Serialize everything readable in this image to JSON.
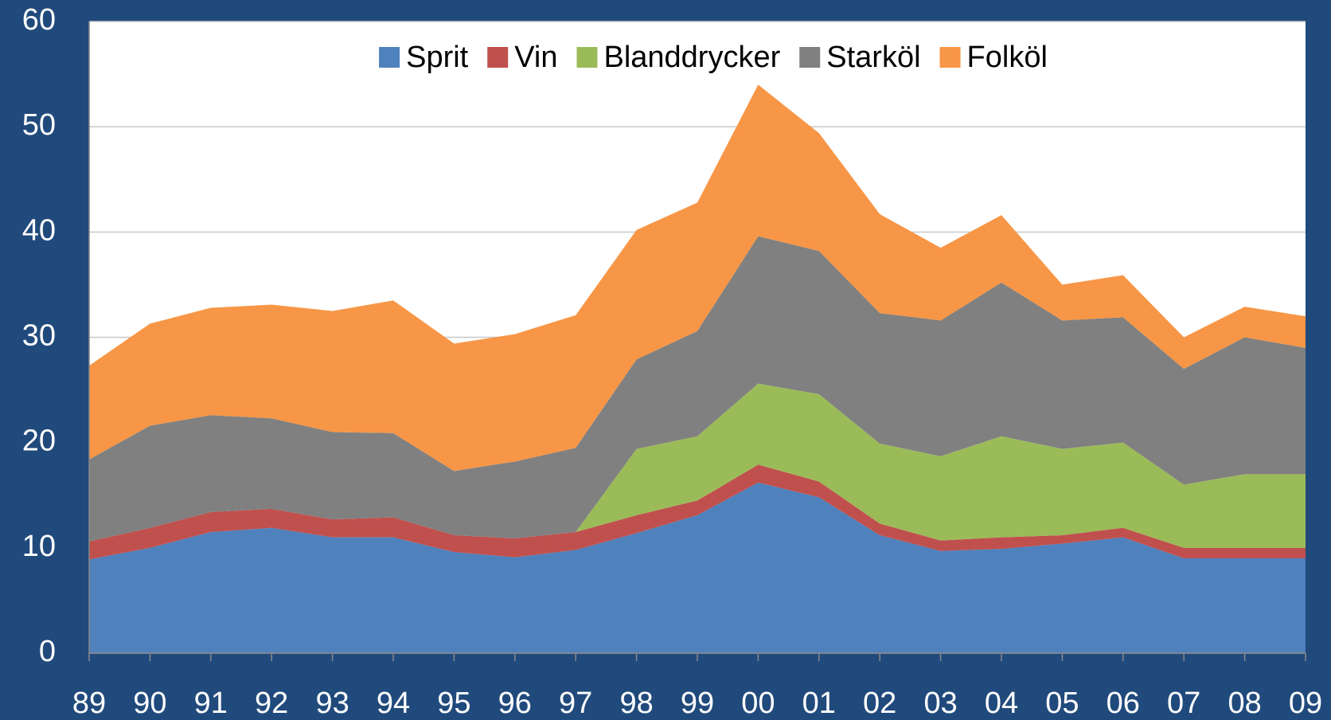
{
  "chart_data": {
    "type": "stacked_area",
    "categories": [
      "89",
      "90",
      "91",
      "92",
      "93",
      "94",
      "95",
      "96",
      "97",
      "98",
      "99",
      "00",
      "01",
      "02",
      "03",
      "04",
      "05",
      "06",
      "07",
      "08",
      "09"
    ],
    "series": [
      {
        "name": "Sprit",
        "color": "#4f81bd",
        "values": [
          8.9,
          10.0,
          11.5,
          11.9,
          11.0,
          11.0,
          9.6,
          9.1,
          9.8,
          11.4,
          13.1,
          16.2,
          14.8,
          11.2,
          9.7,
          9.9,
          10.4,
          11.0,
          9.0,
          9.0,
          9.0
        ]
      },
      {
        "name": "Vin",
        "color": "#c0504d",
        "values": [
          1.7,
          1.9,
          1.9,
          1.8,
          1.7,
          1.9,
          1.6,
          1.8,
          1.7,
          1.7,
          1.4,
          1.7,
          1.5,
          1.1,
          1.0,
          1.1,
          0.8,
          0.9,
          1.0,
          1.0,
          1.0
        ]
      },
      {
        "name": "Blanddrycker",
        "color": "#9bbb59",
        "values": [
          0,
          0,
          0,
          0,
          0,
          0,
          0,
          0,
          0,
          6.3,
          6.1,
          7.7,
          8.3,
          7.6,
          8.0,
          9.6,
          8.2,
          8.1,
          6.0,
          7.0,
          7.0
        ]
      },
      {
        "name": "Starköl",
        "color": "#808080",
        "values": [
          7.8,
          9.7,
          9.2,
          8.6,
          8.3,
          8.0,
          6.1,
          7.3,
          8.0,
          8.5,
          10.0,
          14.0,
          13.6,
          12.4,
          12.9,
          14.6,
          12.2,
          11.9,
          11.0,
          13.0,
          12.0
        ]
      },
      {
        "name": "Folköl",
        "color": "#f79646",
        "values": [
          8.9,
          9.7,
          10.2,
          10.8,
          11.5,
          12.6,
          12.1,
          12.1,
          12.6,
          12.3,
          12.2,
          14.4,
          11.2,
          9.4,
          6.9,
          6.4,
          3.4,
          4.0,
          3.0,
          2.9,
          3.0
        ]
      }
    ],
    "ylim": [
      0,
      60
    ],
    "yticks": [
      0,
      10,
      20,
      30,
      40,
      50,
      60
    ],
    "grid": true,
    "legend": "top"
  }
}
